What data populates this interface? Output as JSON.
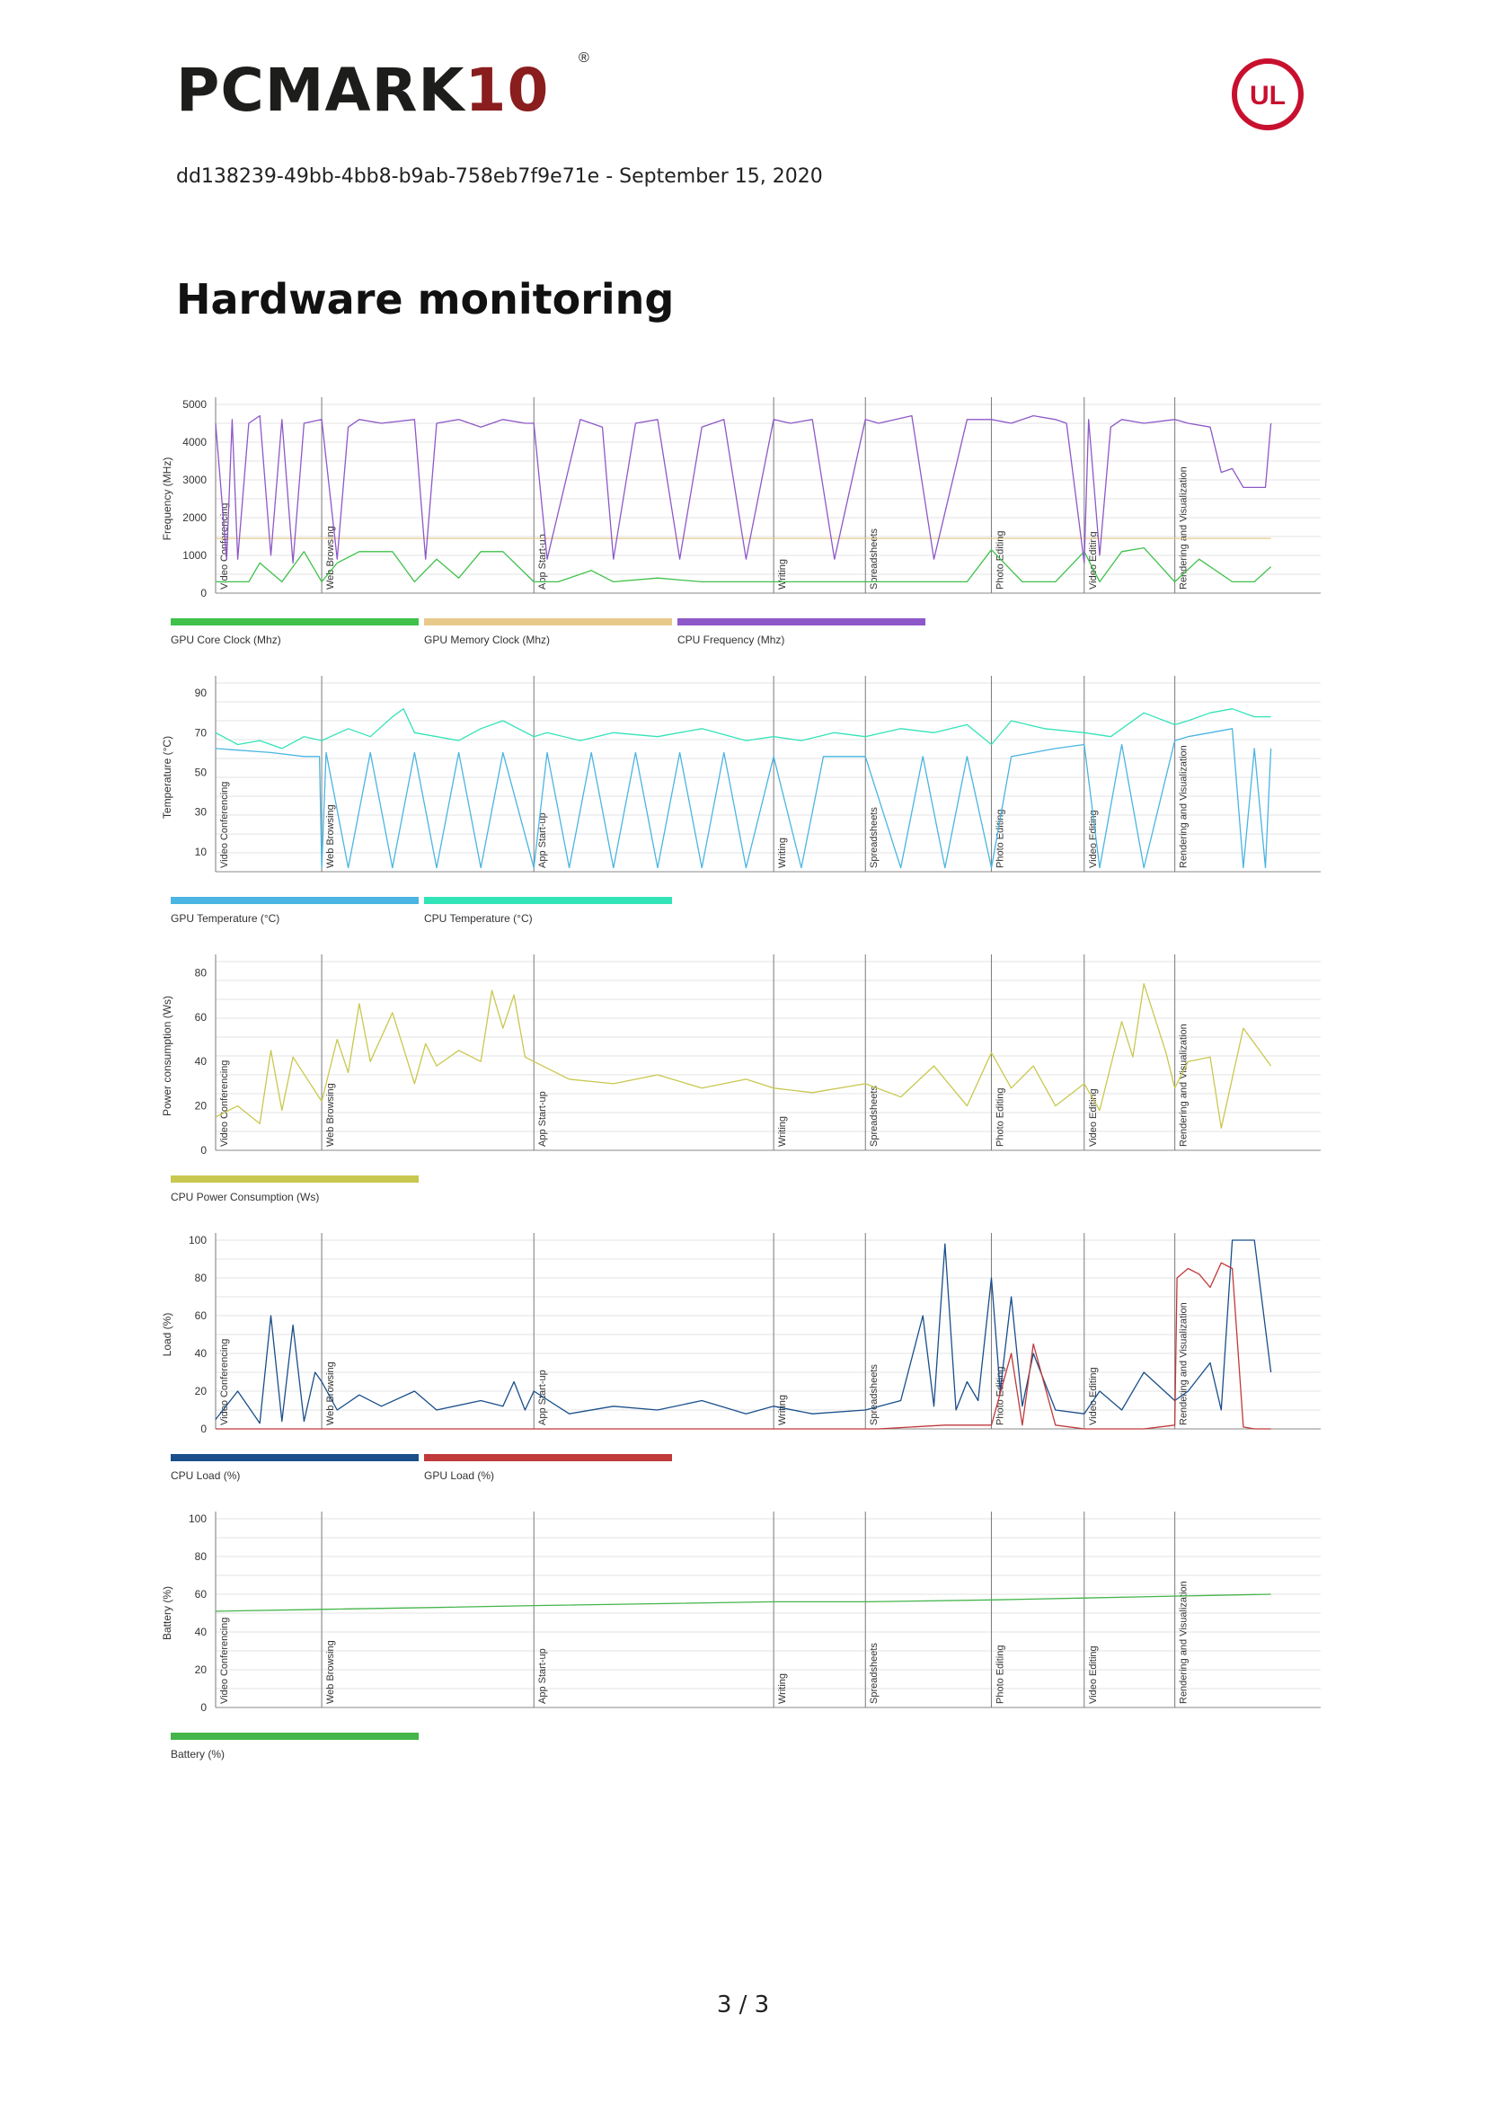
{
  "header": {
    "logo_text": "PCMARK",
    "logo_number": "10",
    "logo_reg": "®",
    "badge_text": "UL",
    "doc_id": "dd138239-49bb-4bb8-b9ab-758eb7f9e71e - September 15, 2020"
  },
  "page_title": "Hardware monitoring",
  "footer": {
    "page": "3 / 3"
  },
  "colors": {
    "gpu_core": "#3fc14a",
    "gpu_mem": "#e8c98a",
    "cpu_freq": "#8e58c8",
    "gpu_temp": "#4ab5e2",
    "cpu_temp": "#33e3b8",
    "cpu_power": "#c8c850",
    "cpu_load": "#1a4f8a",
    "gpu_load": "#c0393b",
    "battery": "#44b54a"
  },
  "chart_data": [
    {
      "type": "line",
      "ylabel": "Frequency (MHz)",
      "yticks": [
        0,
        1000,
        2000,
        3000,
        4000,
        5000
      ],
      "ylim": [
        0,
        5000
      ],
      "xlim": [
        0,
        100
      ],
      "grid": true,
      "legend_position": "bottom-left",
      "phases": [
        {
          "name": "Video Conferencing",
          "x": 0
        },
        {
          "name": "Web Browsing",
          "x": 9.6
        },
        {
          "name": "App Start-up",
          "x": 28.8
        },
        {
          "name": "Writing",
          "x": 50.5
        },
        {
          "name": "Spreadsheets",
          "x": 58.8
        },
        {
          "name": "Photo Editing",
          "x": 70.2
        },
        {
          "name": "Video Editing",
          "x": 78.6
        },
        {
          "name": "Rendering and Visualization",
          "x": 86.8
        }
      ],
      "series": [
        {
          "name": "GPU Core Clock (Mhz)",
          "color": "#3fc14a",
          "x": [
            0,
            3,
            4,
            6,
            8,
            9.6,
            11,
            13,
            16,
            18,
            20,
            22,
            24,
            26,
            28.8,
            31,
            34,
            36,
            40,
            44,
            48,
            50.5,
            53,
            56,
            58.8,
            62,
            65,
            68,
            70.2,
            73,
            76,
            78.6,
            80,
            82,
            84,
            86.8,
            89,
            92,
            94,
            95.5
          ],
          "values": [
            300,
            300,
            800,
            300,
            1100,
            300,
            800,
            1100,
            1100,
            300,
            900,
            400,
            1100,
            1100,
            300,
            300,
            600,
            300,
            400,
            300,
            300,
            300,
            300,
            300,
            300,
            300,
            300,
            300,
            1150,
            300,
            300,
            1100,
            300,
            1100,
            1200,
            300,
            900,
            300,
            300,
            700
          ]
        },
        {
          "name": "GPU Memory Clock (Mhz)",
          "color": "#e8c98a",
          "x": [
            0,
            95.5
          ],
          "values": [
            1450,
            1450
          ]
        },
        {
          "name": "CPU Frequency (Mhz)",
          "color": "#8e58c8",
          "x": [
            0,
            1,
            1.5,
            2,
            3,
            4,
            5,
            6,
            7,
            8,
            9.6,
            11,
            12,
            13,
            15,
            18,
            19,
            20,
            22,
            24,
            26,
            28,
            28.8,
            30,
            33,
            35,
            36,
            38,
            40,
            42,
            44,
            46,
            48,
            50.5,
            52,
            54,
            56,
            58.8,
            60,
            63,
            65,
            68,
            70.2,
            72,
            74,
            76,
            77,
            78.6,
            79,
            80,
            81,
            82,
            84,
            86.8,
            88,
            90,
            91,
            92,
            93,
            95,
            95.5
          ],
          "values": [
            4500,
            900,
            4600,
            900,
            4500,
            4700,
            1000,
            4600,
            800,
            4500,
            4600,
            900,
            4400,
            4600,
            4500,
            4600,
            900,
            4500,
            4600,
            4400,
            4600,
            4500,
            4500,
            900,
            4600,
            4400,
            900,
            4500,
            4600,
            900,
            4400,
            4600,
            900,
            4600,
            4500,
            4600,
            900,
            4600,
            4500,
            4700,
            900,
            4600,
            4600,
            4500,
            4700,
            4600,
            4500,
            800,
            4600,
            1000,
            4400,
            4600,
            4500,
            4600,
            4500,
            4400,
            3200,
            3300,
            2800,
            2800,
            4500
          ]
        }
      ]
    },
    {
      "type": "line",
      "ylabel": "Temperature (°C)",
      "yticks": [
        10,
        30,
        50,
        70,
        90
      ],
      "ylim": [
        0,
        95
      ],
      "xlim": [
        0,
        100
      ],
      "grid": true,
      "legend_position": "bottom-left",
      "phases": [
        {
          "name": "Video Conferencing",
          "x": 0
        },
        {
          "name": "Web Browsing",
          "x": 9.6
        },
        {
          "name": "App Start-up",
          "x": 28.8
        },
        {
          "name": "Writing",
          "x": 50.5
        },
        {
          "name": "Spreadsheets",
          "x": 58.8
        },
        {
          "name": "Photo Editing",
          "x": 70.2
        },
        {
          "name": "Video Editing",
          "x": 78.6
        },
        {
          "name": "Rendering and Visualization",
          "x": 86.8
        }
      ],
      "series": [
        {
          "name": "GPU Temperature (°C)",
          "color": "#4ab5e2",
          "x": [
            0,
            5,
            8,
            9.4,
            9.6,
            10,
            12,
            14,
            16,
            18,
            20,
            22,
            24,
            26,
            28.8,
            30,
            32,
            34,
            36,
            38,
            40,
            42,
            44,
            46,
            48,
            50.5,
            53,
            55,
            58.8,
            62,
            64,
            66,
            68,
            70.2,
            72,
            74,
            76,
            78.6,
            80,
            82,
            84,
            86.8,
            88,
            90,
            92,
            93,
            94,
            95,
            95.5
          ],
          "values": [
            62,
            60,
            58,
            58,
            2,
            60,
            2,
            60,
            2,
            60,
            2,
            60,
            2,
            60,
            2,
            60,
            2,
            60,
            2,
            60,
            2,
            60,
            2,
            60,
            2,
            58,
            2,
            58,
            58,
            2,
            58,
            2,
            58,
            2,
            58,
            60,
            62,
            64,
            2,
            64,
            2,
            66,
            68,
            70,
            72,
            2,
            62,
            2,
            62
          ]
        },
        {
          "name": "CPU Temperature (°C)",
          "color": "#33e3b8",
          "x": [
            0,
            2,
            4,
            6,
            8,
            9.6,
            12,
            14,
            16,
            17,
            18,
            20,
            22,
            24,
            26,
            28.8,
            30,
            33,
            36,
            40,
            44,
            48,
            50.5,
            53,
            56,
            58.8,
            62,
            65,
            68,
            70.2,
            72,
            75,
            78.6,
            81,
            84,
            86.8,
            88,
            90,
            92,
            94,
            95.5
          ],
          "values": [
            70,
            64,
            66,
            62,
            68,
            66,
            72,
            68,
            78,
            82,
            70,
            68,
            66,
            72,
            76,
            68,
            70,
            66,
            70,
            68,
            72,
            66,
            68,
            66,
            70,
            68,
            72,
            70,
            74,
            64,
            76,
            72,
            70,
            68,
            80,
            74,
            76,
            80,
            82,
            78,
            78
          ]
        }
      ]
    },
    {
      "type": "line",
      "ylabel": "Power consumption (Ws)",
      "yticks": [
        0,
        20,
        40,
        60,
        80
      ],
      "ylim": [
        0,
        85
      ],
      "xlim": [
        0,
        100
      ],
      "grid": true,
      "legend_position": "bottom-left",
      "phases": [
        {
          "name": "Video Conferencing",
          "x": 0
        },
        {
          "name": "Web Browsing",
          "x": 9.6
        },
        {
          "name": "App Start-up",
          "x": 28.8
        },
        {
          "name": "Writing",
          "x": 50.5
        },
        {
          "name": "Spreadsheets",
          "x": 58.8
        },
        {
          "name": "Photo Editing",
          "x": 70.2
        },
        {
          "name": "Video Editing",
          "x": 78.6
        },
        {
          "name": "Rendering and Visualization",
          "x": 86.8
        }
      ],
      "series": [
        {
          "name": "CPU Power Consumption (Ws)",
          "color": "#c8c850",
          "x": [
            0,
            2,
            4,
            5,
            6,
            7,
            9.6,
            11,
            12,
            13,
            14,
            16,
            18,
            19,
            20,
            22,
            24,
            25,
            26,
            27,
            28,
            28.8,
            32,
            36,
            40,
            44,
            48,
            50.5,
            54,
            58.8,
            62,
            65,
            68,
            70.2,
            72,
            74,
            76,
            78.6,
            80,
            82,
            83,
            84,
            86,
            86.8,
            88,
            90,
            91,
            93,
            95.5
          ],
          "values": [
            15,
            20,
            12,
            45,
            18,
            42,
            22,
            50,
            35,
            66,
            40,
            62,
            30,
            48,
            38,
            45,
            40,
            72,
            55,
            70,
            42,
            40,
            32,
            30,
            34,
            28,
            32,
            28,
            26,
            30,
            24,
            38,
            20,
            44,
            28,
            38,
            20,
            30,
            18,
            58,
            42,
            75,
            44,
            28,
            40,
            42,
            10,
            55,
            38
          ]
        }
      ]
    },
    {
      "type": "line",
      "ylabel": "Load (%)",
      "yticks": [
        0,
        20,
        40,
        60,
        80,
        100
      ],
      "ylim": [
        0,
        100
      ],
      "xlim": [
        0,
        100
      ],
      "grid": true,
      "legend_position": "bottom-left",
      "phases": [
        {
          "name": "Video Conferencing",
          "x": 0
        },
        {
          "name": "Web Browsing",
          "x": 9.6
        },
        {
          "name": "App Start-up",
          "x": 28.8
        },
        {
          "name": "Writing",
          "x": 50.5
        },
        {
          "name": "Spreadsheets",
          "x": 58.8
        },
        {
          "name": "Photo Editing",
          "x": 70.2
        },
        {
          "name": "Video Editing",
          "x": 78.6
        },
        {
          "name": "Rendering and Visualization",
          "x": 86.8
        }
      ],
      "series": [
        {
          "name": "CPU Load (%)",
          "color": "#1a4f8a",
          "x": [
            0,
            2,
            4,
            5,
            6,
            7,
            8,
            9,
            9.6,
            11,
            13,
            15,
            18,
            20,
            24,
            26,
            27,
            28,
            28.8,
            32,
            36,
            40,
            44,
            48,
            50.5,
            54,
            58.8,
            62,
            64,
            65,
            66,
            67,
            68,
            69,
            70.2,
            71,
            72,
            73,
            74,
            76,
            78.6,
            80,
            82,
            84,
            86.8,
            88,
            90,
            91,
            92,
            93,
            94,
            95.5
          ],
          "values": [
            5,
            20,
            3,
            60,
            4,
            55,
            4,
            30,
            25,
            10,
            18,
            12,
            20,
            10,
            15,
            12,
            25,
            10,
            20,
            8,
            12,
            10,
            15,
            8,
            12,
            8,
            10,
            15,
            60,
            12,
            98,
            10,
            25,
            15,
            80,
            20,
            70,
            12,
            40,
            10,
            8,
            20,
            10,
            30,
            15,
            20,
            35,
            10,
            100,
            100,
            100,
            30
          ]
        },
        {
          "name": "GPU Load (%)",
          "color": "#c0393b",
          "x": [
            0,
            60,
            66,
            70.2,
            72,
            73,
            74,
            76,
            78.6,
            84,
            86.8,
            87,
            88,
            89,
            90,
            91,
            92,
            93,
            94,
            95.5
          ],
          "values": [
            0,
            0,
            2,
            2,
            40,
            2,
            45,
            2,
            0,
            0,
            2,
            80,
            85,
            82,
            75,
            88,
            85,
            1,
            0,
            0
          ]
        }
      ]
    },
    {
      "type": "line",
      "ylabel": "Battery (%)",
      "yticks": [
        0,
        20,
        40,
        60,
        80,
        100
      ],
      "ylim": [
        0,
        100
      ],
      "xlim": [
        0,
        100
      ],
      "grid": true,
      "legend_position": "bottom-left",
      "phases": [
        {
          "name": "Video Conferencing",
          "x": 0
        },
        {
          "name": "Web Browsing",
          "x": 9.6
        },
        {
          "name": "App Start-up",
          "x": 28.8
        },
        {
          "name": "Writing",
          "x": 50.5
        },
        {
          "name": "Spreadsheets",
          "x": 58.8
        },
        {
          "name": "Photo Editing",
          "x": 70.2
        },
        {
          "name": "Video Editing",
          "x": 78.6
        },
        {
          "name": "Rendering and Visualization",
          "x": 86.8
        }
      ],
      "series": [
        {
          "name": "Battery (%)",
          "color": "#44b54a",
          "x": [
            0,
            9.6,
            20,
            28.8,
            40,
            50.5,
            58.8,
            70.2,
            78.6,
            86.8,
            95.5
          ],
          "values": [
            51,
            52,
            53,
            54,
            55,
            56,
            56,
            57,
            58,
            59,
            60
          ]
        }
      ]
    }
  ]
}
